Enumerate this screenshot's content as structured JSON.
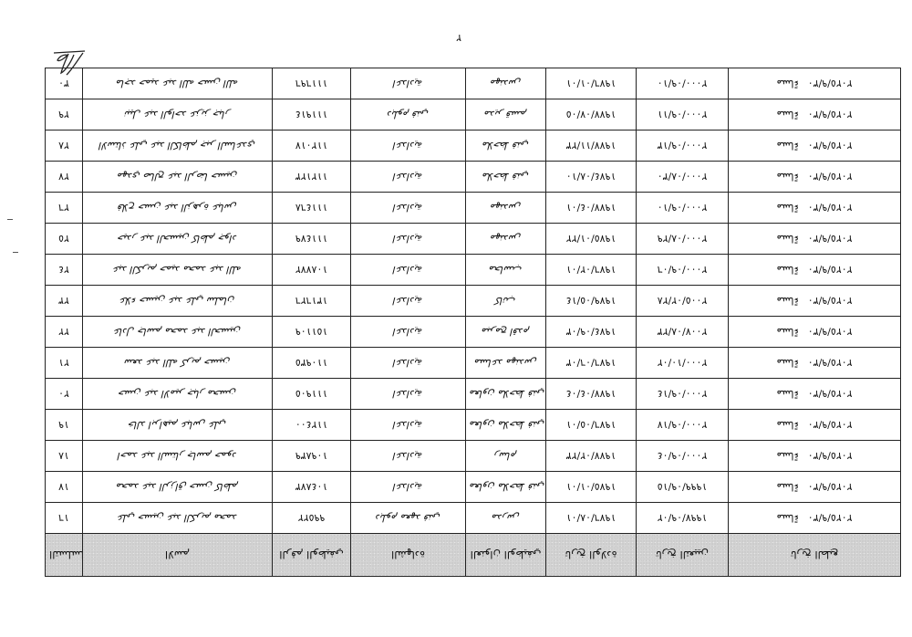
{
  "page_number": "٢",
  "table": {
    "headers": [
      "التسلسل",
      "الاسم",
      "الرقم الوظيفي",
      "الشهادة",
      "العنوان الوظيفي",
      "تاريخ الولادة",
      "تاريخ التعيين",
      "تاريخ الطبع"
    ],
    "rows": [
      {
        "seq": "١٦",
        "name": "علي حسين عبد الكريم محمد",
        "id": "٩٩٥٢٢",
        "qualification": "دبلوم معهد فني",
        "job_title": "مدرس",
        "birth_date": "١٩٧٦/٠٨/٠١",
        "hire_date": "١٩٩٧/٠٩/٠٢",
        "print_date": "٢٠٢٥/٩/٣٠",
        "print_period": "مساءً"
      },
      {
        "seq": "١٧",
        "name": "محمد عبد الرزاق حسن كاظم",
        "id": "١٠٤٨٧٣",
        "qualification": "اعدادية",
        "job_title": "معاون ملاحظ فني",
        "birth_date": "١٩٧٥/٠١/٠١",
        "hire_date": "١٩٩٩/٠٩/١٥",
        "print_date": "٢٠٢٥/٩/٣٠",
        "print_period": "مساءً"
      },
      {
        "seq": "١٨",
        "name": "احمد عبد الستار جاسم حمود",
        "id": "١٠٩٨٣٩",
        "qualification": "اعدادية",
        "job_title": "رسام",
        "birth_date": "١٩٧٧/٠٢/٢٣",
        "hire_date": "٢٠٠٠/٠٩/٠٤",
        "print_date": "٢٠٢٥/٩/٣٠",
        "print_period": "مساءً"
      },
      {
        "seq": "١٩",
        "name": "خالد ابراهيم عباس علي",
        "id": "١١٢٤٠٠",
        "qualification": "اعدادية",
        "job_title": "معاون ملاحظ فني",
        "birth_date": "١٩٧٦/٠٥/٠١",
        "hire_date": "٢٠٠٠/٠٩/١٧",
        "print_date": "٢٠٢٥/٩/٣٠",
        "print_period": "مساءً"
      },
      {
        "seq": "٢٠",
        "name": "حسن عبد الامير جبار محسن",
        "id": "١١١٩٠٥",
        "qualification": "اعدادية",
        "job_title": "معاون ملاحظ فني",
        "birth_date": "١٩٧٧/٠٤/٠٤",
        "hire_date": "٢٠٠٠/٠٩/١٤",
        "print_date": "٢٠٢٥/٩/٣٠",
        "print_period": "مساءً"
      },
      {
        "seq": "٢١",
        "name": "سعد عبد الله كريم حسين",
        "id": "١١٠٩٣٥",
        "qualification": "اعدادية",
        "job_title": "مساعد مهندس",
        "birth_date": "١٩٧٦/٠٦/٠٣",
        "hire_date": "٢٠٠٠/١٠/٠٢",
        "print_date": "٢٠٢٥/٩/٣٠",
        "print_period": "مساءً"
      },
      {
        "seq": "٢٢",
        "name": "عادل جاسم محمد عبد الحسين",
        "id": "١٥١١٠٩",
        "qualification": "اعدادية",
        "job_title": "مبرمج اقدم",
        "birth_date": "١٩٧٤/٠٩/٠٣",
        "hire_date": "٢٠٠٧/٠٨/٢٣",
        "print_date": "٢٠٢٥/٩/٣٠",
        "print_period": "مساءً"
      },
      {
        "seq": "٢٣",
        "name": "علاء حسين عبد علي سلمان",
        "id": "١٣١٦٢٦",
        "qualification": "اعدادية",
        "job_title": "كاتب",
        "birth_date": "١٩٧٩/٠٥/١٤",
        "hire_date": "٢٠٠٥/٠٢/٢٨",
        "print_date": "٢٠٢٥/٩/٣٠",
        "print_period": "مساءً"
      },
      {
        "seq": "٢٤",
        "name": "عبد الكريم حميد محمد عبد الله",
        "id": "١٠٨٧٧٢",
        "qualification": "اعدادية",
        "job_title": "محاسب",
        "birth_date": "١٩٧٦/٠٢/٠١",
        "hire_date": "٢٠٠٠/٠٩/٠٦",
        "print_date": "٢٠٢٥/٩/٣٠",
        "print_period": "مساءً"
      },
      {
        "seq": "٢٥",
        "name": "حيدر عبد الحسين كاظم جواد",
        "id": "١١١٤٧٩",
        "qualification": "اعدادية",
        "job_title": "مهندس",
        "birth_date": "١٩٧٥/٠١/٢٢",
        "hire_date": "٢٠٠٠/٠٨/٢٩",
        "print_date": "٢٠٢٥/٩/٣٠",
        "print_period": "مساءً"
      },
      {
        "seq": "٢٦",
        "name": "فلاح حسن عبد الزهرة عباس",
        "id": "١١١٤٦٨",
        "qualification": "اعدادية",
        "job_title": "مهندس",
        "birth_date": "١٩٧٧/٠٤/٠١",
        "hire_date": "٢٠٠٠/٠٩/١٠",
        "print_date": "٢٠٢٥/٩/٣٠",
        "print_period": "مساءً"
      },
      {
        "seq": "٢٧",
        "name": "مهدي صالح عبد الرضا حسين",
        "id": "١١٢١٢٣",
        "qualification": "اعدادية",
        "job_title": "ملاحظ فني",
        "birth_date": "١٩٧٤/٠٨/١٠",
        "hire_date": "٢٠٠٠/٠٨/٣٠",
        "print_date": "٢٠٢٥/٩/٣٠",
        "print_period": "مساءً"
      },
      {
        "seq": "٢٨",
        "name": "الاستاذ علي عبد الكاظم جبر الساعدي",
        "id": "١١٢٠١٧",
        "qualification": "اعدادية",
        "job_title": "ملاحظ فني",
        "birth_date": "١٩٧٧/١١/٢٣",
        "hire_date": "٢٠٠٠/٠٩/١٣",
        "print_date": "٢٠٢٥/٩/٣٠",
        "print_period": "مساءً"
      },
      {
        "seq": "٢٩",
        "name": "نبيل عبد الواحد عزيز جبار",
        "id": "١١١٩١٤",
        "qualification": "دبلوم فني",
        "job_title": "مدير قسم",
        "birth_date": "١٩٧٧/٠٧/٠٥",
        "hire_date": "٢٠٠٠/٠٩/١١",
        "print_date": "٢٠٢٥/٩/٣٠",
        "print_period": "مساءً"
      },
      {
        "seq": "٣٠",
        "name": "ماجد حميد عبد الله حسن الله",
        "id": "١١١٦٩٦",
        "qualification": "اعدادية",
        "job_title": "مهندس",
        "birth_date": "١٩٧٦/٠١/٠١",
        "hire_date": "٢٠٠٠/٠٩/١٠",
        "print_date": "٢٠٢٥/٩/٣٠",
        "print_period": "مساءً"
      }
    ]
  },
  "colors": {
    "header_fill": "#d3d3d3",
    "rule": "#222222",
    "paper": "#ffffff"
  },
  "orientation": "rotated 180 degrees (scanned upside-down)"
}
